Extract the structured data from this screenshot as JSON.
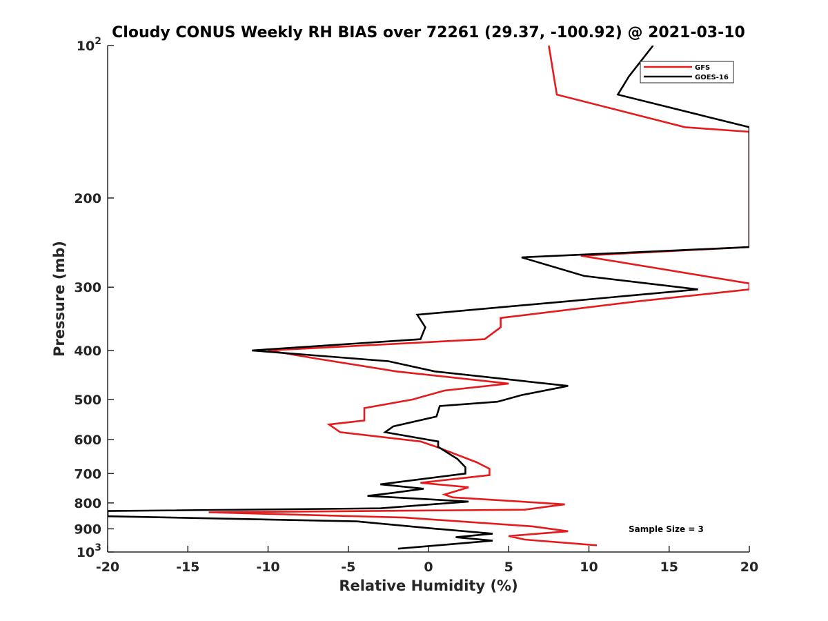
{
  "chart_data": {
    "type": "line",
    "title": "Cloudy CONUS Weekly RH BIAS over 72261 (29.37, -100.92) @ 2021-03-10",
    "xlabel": "Relative Humidity (%)",
    "ylabel": "Pressure (mb)",
    "xlim": [
      -20,
      20
    ],
    "ylim": [
      100,
      1000
    ],
    "yscale": "log",
    "y_reversed": true,
    "xticks": [
      -20,
      -15,
      -10,
      -5,
      0,
      5,
      10,
      15,
      20
    ],
    "xtick_labels": [
      "-20",
      "-15",
      "-10",
      "-5",
      "0",
      "5",
      "10",
      "15",
      "20"
    ],
    "yticks": [
      100,
      200,
      300,
      400,
      500,
      600,
      700,
      800,
      900,
      1000
    ],
    "ytick_labels": [
      {
        "base": "10",
        "exp": "2"
      },
      {
        "base": "200",
        "exp": ""
      },
      {
        "base": "300",
        "exp": ""
      },
      {
        "base": "400",
        "exp": ""
      },
      {
        "base": "500",
        "exp": ""
      },
      {
        "base": "600",
        "exp": ""
      },
      {
        "base": "700",
        "exp": ""
      },
      {
        "base": "800",
        "exp": ""
      },
      {
        "base": "900",
        "exp": ""
      },
      {
        "base": "10",
        "exp": "3"
      }
    ],
    "legend_position": "top-right",
    "annotation": "Sample Size = 3",
    "series": [
      {
        "name": "GFS",
        "color": "#e41a1c",
        "points": [
          [
            7.5,
            100
          ],
          [
            8.0,
            125
          ],
          [
            16.0,
            145
          ],
          [
            20.0,
            148
          ],
          [
            20.0,
            250
          ],
          [
            9.5,
            260
          ],
          [
            20.0,
            295
          ],
          [
            20.0,
            303
          ],
          [
            13.0,
            320
          ],
          [
            4.5,
            345
          ],
          [
            4.5,
            360
          ],
          [
            3.5,
            380
          ],
          [
            -10.0,
            400
          ],
          [
            -7.0,
            415
          ],
          [
            -2.0,
            440
          ],
          [
            5.0,
            465
          ],
          [
            1.0,
            480
          ],
          [
            -1.0,
            500
          ],
          [
            -4.0,
            520
          ],
          [
            -4.0,
            550
          ],
          [
            -6.2,
            560
          ],
          [
            -5.5,
            580
          ],
          [
            -0.5,
            605
          ],
          [
            0.5,
            620
          ],
          [
            3.0,
            665
          ],
          [
            3.8,
            685
          ],
          [
            3.8,
            705
          ],
          [
            -0.5,
            730
          ],
          [
            2.5,
            745
          ],
          [
            1.0,
            770
          ],
          [
            1.5,
            780
          ],
          [
            8.5,
            805
          ],
          [
            6.0,
            825
          ],
          [
            -13.7,
            835
          ],
          [
            -1.5,
            855
          ],
          [
            6.5,
            890
          ],
          [
            8.7,
            910
          ],
          [
            5.0,
            930
          ],
          [
            6.0,
            945
          ],
          [
            10.5,
            970
          ]
        ]
      },
      {
        "name": "GOES-16",
        "color": "#000000",
        "points": [
          [
            14.0,
            100
          ],
          [
            12.5,
            115
          ],
          [
            11.8,
            125
          ],
          [
            20.0,
            145
          ],
          [
            20.0,
            250
          ],
          [
            5.8,
            262
          ],
          [
            9.7,
            285
          ],
          [
            16.8,
            303
          ],
          [
            8.6,
            320
          ],
          [
            -0.7,
            340
          ],
          [
            -0.2,
            360
          ],
          [
            -0.5,
            380
          ],
          [
            -11.0,
            400
          ],
          [
            -2.5,
            420
          ],
          [
            0.4,
            440
          ],
          [
            8.7,
            470
          ],
          [
            5.8,
            490
          ],
          [
            4.3,
            505
          ],
          [
            0.7,
            515
          ],
          [
            0.5,
            540
          ],
          [
            -2.2,
            565
          ],
          [
            -2.7,
            580
          ],
          [
            0.6,
            605
          ],
          [
            0.6,
            620
          ],
          [
            1.8,
            655
          ],
          [
            2.3,
            680
          ],
          [
            2.3,
            700
          ],
          [
            -3.0,
            735
          ],
          [
            -0.3,
            750
          ],
          [
            -2.3,
            765
          ],
          [
            -3.8,
            775
          ],
          [
            2.5,
            795
          ],
          [
            -3.0,
            820
          ],
          [
            -20.0,
            830
          ],
          [
            -20.0,
            850
          ],
          [
            -4.5,
            870
          ],
          [
            0.5,
            900
          ],
          [
            4.0,
            920
          ],
          [
            1.7,
            935
          ],
          [
            4.0,
            950
          ],
          [
            -1.9,
            985
          ]
        ]
      }
    ]
  }
}
